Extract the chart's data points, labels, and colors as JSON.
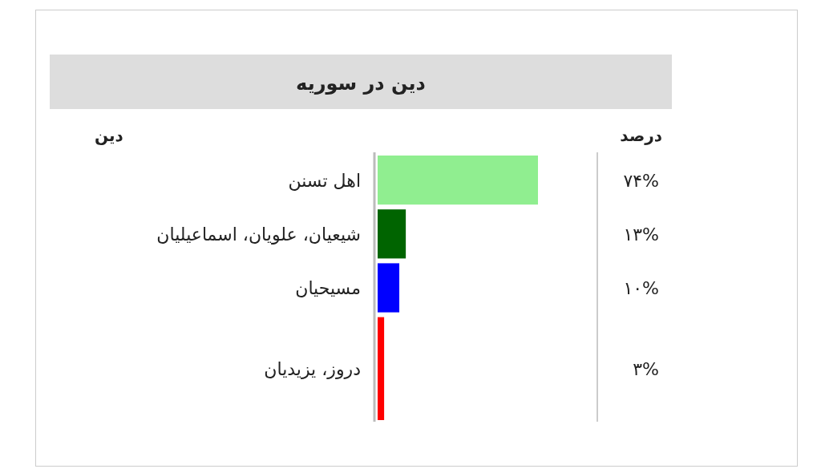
{
  "chart_data": {
    "type": "bar",
    "orientation": "horizontal",
    "title": "دین در سوریه",
    "ylabel": "دین",
    "annotations": [
      "درصد"
    ],
    "categories": [
      "اهل تسنن",
      "شیعیان، علویان، اسماعیلیان",
      "مسیحیان",
      "دروز، یزیدیان"
    ],
    "values": [
      74,
      13,
      10,
      3
    ],
    "colors": [
      "#90ee90",
      "#006400",
      "#0000ff",
      "#ff0000"
    ],
    "value_labels": [
      "۷۴%",
      "۱۳%",
      "۱۰%",
      "۳%"
    ]
  }
}
